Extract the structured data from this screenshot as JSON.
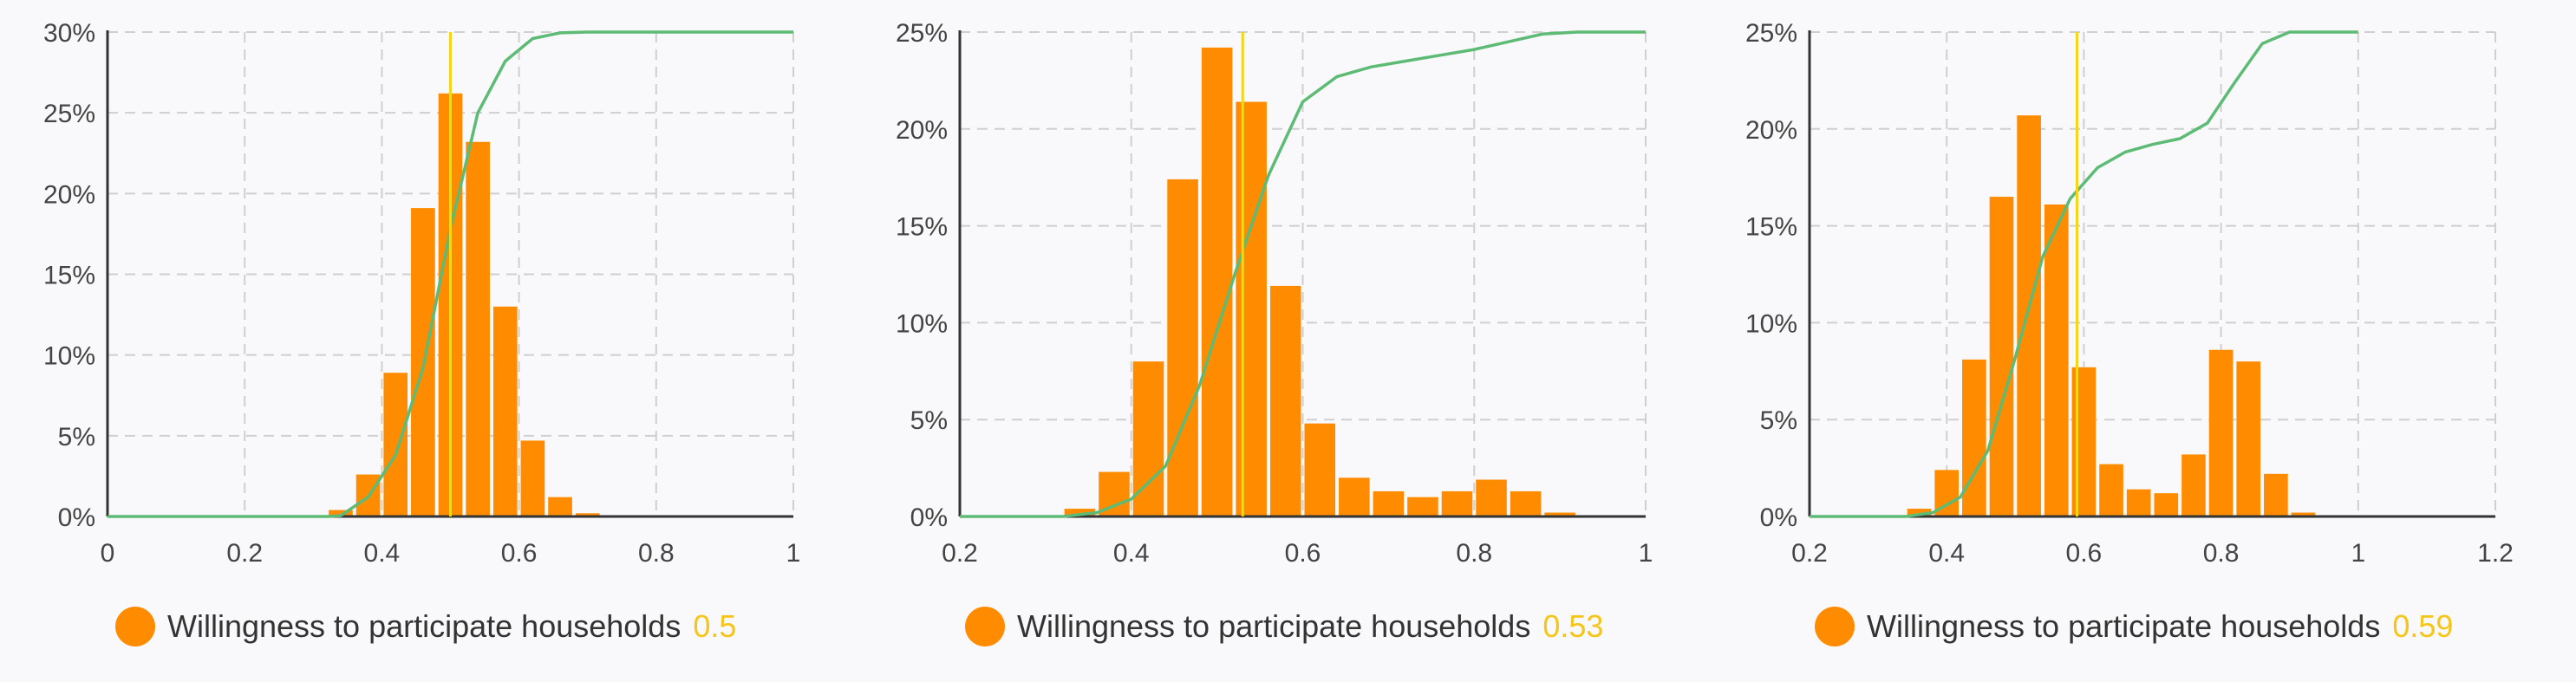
{
  "colors": {
    "bars": "#ff8c00",
    "bar_edge": "#ffffff",
    "cumulative_line": "#5dbb76",
    "mean_line": "#f5d517",
    "grid": "#cfcfcf",
    "axis": "#333333",
    "legend_value": "#f5c518"
  },
  "chart_data": [
    {
      "type": "bar",
      "overlays": [
        "line",
        "vertical-line"
      ],
      "grid": true,
      "legend_placement": "bottom",
      "legend_label": "Willingness to participate households",
      "legend_value": "0.5",
      "mean_marker": 0.5,
      "xlim": [
        0,
        1
      ],
      "x_ticks": [
        "0",
        "0.2",
        "0.4",
        "0.6",
        "0.8",
        "1"
      ],
      "ylim": [
        0,
        30
      ],
      "y_ticks": [
        "0%",
        "5%",
        "10%",
        "15%",
        "20%",
        "25%",
        "30%"
      ],
      "bin_width": 0.04,
      "bin_starts": [
        0.32,
        0.36,
        0.4,
        0.44,
        0.48,
        0.52,
        0.56,
        0.6,
        0.64,
        0.68
      ],
      "values": [
        0.4,
        2.6,
        8.9,
        19.1,
        26.2,
        23.2,
        13.0,
        4.7,
        1.2,
        0.2
      ],
      "cumulative_line": {
        "x": [
          0,
          0.32,
          0.34,
          0.38,
          0.42,
          0.46,
          0.5,
          0.54,
          0.58,
          0.62,
          0.66,
          0.7,
          0.74,
          1.0
        ],
        "y": [
          0,
          0,
          0.05,
          1.2,
          3.8,
          9.2,
          17.8,
          25.0,
          28.2,
          29.6,
          29.95,
          30,
          30,
          30
        ]
      }
    },
    {
      "type": "bar",
      "overlays": [
        "line",
        "vertical-line"
      ],
      "grid": true,
      "legend_placement": "bottom",
      "legend_label": "Willingness to participate households",
      "legend_value": "0.53",
      "mean_marker": 0.53,
      "xlim": [
        0.2,
        1
      ],
      "x_ticks": [
        "0.2",
        "0.4",
        "0.6",
        "0.8",
        "1"
      ],
      "ylim": [
        0,
        25
      ],
      "y_ticks": [
        "0%",
        "5%",
        "10%",
        "15%",
        "20%",
        "25%"
      ],
      "bin_width": 0.04,
      "bin_starts": [
        0.32,
        0.36,
        0.4,
        0.44,
        0.48,
        0.52,
        0.56,
        0.6,
        0.64,
        0.68,
        0.72,
        0.76,
        0.8,
        0.84,
        0.88
      ],
      "values": [
        0.4,
        2.3,
        8.0,
        17.4,
        24.2,
        21.4,
        11.9,
        4.8,
        2.0,
        1.3,
        1.0,
        1.3,
        1.9,
        1.3,
        0.2
      ],
      "cumulative_line": {
        "x": [
          0.2,
          0.32,
          0.36,
          0.4,
          0.44,
          0.48,
          0.52,
          0.56,
          0.6,
          0.64,
          0.68,
          0.72,
          0.76,
          0.8,
          0.84,
          0.88,
          0.92,
          1.0
        ],
        "y": [
          0,
          0,
          0.2,
          0.9,
          2.6,
          6.8,
          12.4,
          17.6,
          21.4,
          22.7,
          23.2,
          23.5,
          23.8,
          24.1,
          24.5,
          24.9,
          25,
          25
        ]
      }
    },
    {
      "type": "bar",
      "overlays": [
        "line",
        "vertical-line"
      ],
      "grid": true,
      "legend_placement": "bottom",
      "legend_label": "Willingness to participate households",
      "legend_value": "0.59",
      "mean_marker": 0.59,
      "xlim": [
        0.2,
        1.2
      ],
      "x_ticks": [
        "0.2",
        "0.4",
        "0.6",
        "0.8",
        "1",
        "1.2"
      ],
      "ylim": [
        0,
        25
      ],
      "y_ticks": [
        "0%",
        "5%",
        "10%",
        "15%",
        "20%",
        "25%"
      ],
      "bin_width": 0.04,
      "bin_starts": [
        0.34,
        0.38,
        0.42,
        0.46,
        0.5,
        0.54,
        0.58,
        0.62,
        0.66,
        0.7,
        0.74,
        0.78,
        0.82,
        0.86,
        0.9
      ],
      "values": [
        0.4,
        2.4,
        8.1,
        16.5,
        20.7,
        16.1,
        7.7,
        2.7,
        1.4,
        1.2,
        3.2,
        8.6,
        8.0,
        2.2,
        0.2
      ],
      "cumulative_line": {
        "x": [
          0.2,
          0.34,
          0.38,
          0.42,
          0.46,
          0.5,
          0.54,
          0.58,
          0.62,
          0.66,
          0.7,
          0.74,
          0.78,
          0.82,
          0.86,
          0.9,
          0.94,
          1.0
        ],
        "y": [
          0,
          0,
          0.2,
          1.0,
          3.4,
          8.2,
          13.4,
          16.4,
          18.0,
          18.8,
          19.2,
          19.5,
          20.3,
          22.4,
          24.4,
          25,
          25,
          25
        ]
      }
    }
  ]
}
